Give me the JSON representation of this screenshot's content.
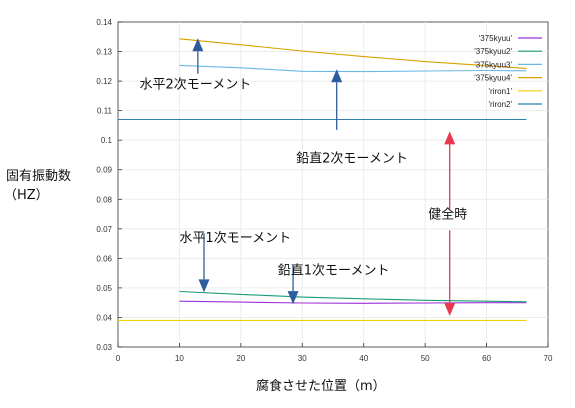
{
  "chart_data": {
    "type": "line",
    "ylabel": "固有振動数",
    "ylabel_unit": "（HZ）",
    "xlabel": "腐食させた位置（m）",
    "xlim": [
      0,
      70
    ],
    "ylim": [
      0.03,
      0.14
    ],
    "x_ticks": [
      0,
      10,
      20,
      30,
      40,
      50,
      60,
      70
    ],
    "y_ticks": [
      0.03,
      0.04,
      0.05,
      0.06,
      0.07,
      0.08,
      0.09,
      0.1,
      0.11,
      0.12,
      0.13,
      0.14
    ],
    "legend_position": "top-right",
    "grid": true,
    "series": [
      {
        "name": "'375kyuu'",
        "color": "#9b30d9",
        "x": [
          10,
          20,
          30,
          40,
          50,
          60,
          66.5
        ],
        "y": [
          0.0455,
          0.0452,
          0.0449,
          0.0448,
          0.0449,
          0.045,
          0.045
        ]
      },
      {
        "name": "'375kyuu2'",
        "color": "#1a9a7a",
        "x": [
          10,
          20,
          30,
          40,
          50,
          60,
          66.5
        ],
        "y": [
          0.0488,
          0.0478,
          0.0469,
          0.0463,
          0.0458,
          0.0455,
          0.0453
        ]
      },
      {
        "name": "'375kyuu3'",
        "color": "#6ab8e6",
        "x": [
          10,
          20,
          30,
          40,
          50,
          60,
          66.5
        ],
        "y": [
          0.1253,
          0.1245,
          0.1233,
          0.1232,
          0.1234,
          0.1236,
          0.1235
        ]
      },
      {
        "name": "'375kyuu4'",
        "color": "#d9a000",
        "x": [
          10,
          20,
          30,
          40,
          50,
          60,
          66.5
        ],
        "y": [
          0.1343,
          0.1323,
          0.1302,
          0.1283,
          0.1266,
          0.1252,
          0.1243
        ]
      },
      {
        "name": "'riron1'",
        "color": "#f2d200",
        "x": [
          0,
          66.5
        ],
        "y": [
          0.039,
          0.039
        ]
      },
      {
        "name": "'riron2'",
        "color": "#2f7fb0",
        "x": [
          0,
          66.5
        ],
        "y": [
          0.107,
          0.107
        ]
      }
    ],
    "annotations": [
      {
        "text": "水平2次モーメント",
        "x": 3.5,
        "y": 0.1175,
        "color": "#111111"
      },
      {
        "text": "鉛直2次モーメント",
        "x": 29,
        "y": 0.0925,
        "color": "#111111"
      },
      {
        "text": "水平1次モーメント",
        "x": 10,
        "y": 0.0655,
        "color": "#111111"
      },
      {
        "text": "鉛直1次モーメント",
        "x": 26,
        "y": 0.0545,
        "color": "#111111"
      },
      {
        "text": "健全時",
        "x": 50.5,
        "y": 0.0735,
        "color": "#d81b3c"
      }
    ],
    "arrows": [
      {
        "color": "#2d5d9c",
        "x1": 13,
        "y1": 0.1225,
        "x2": 13,
        "y2": 0.1345
      },
      {
        "color": "#2d5d9c",
        "x1": 35.6,
        "y1": 0.1035,
        "x2": 35.6,
        "y2": 0.124
      },
      {
        "color": "#2d5d9c",
        "x1": 14,
        "y1": 0.0685,
        "x2": 14,
        "y2": 0.0485
      },
      {
        "color": "#2d5d9c",
        "x1": 28.5,
        "y1": 0.0575,
        "x2": 28.5,
        "y2": 0.0445
      },
      {
        "color": "#e8384f",
        "x1": 54,
        "y1": 0.0765,
        "x2": 54,
        "y2": 0.103,
        "head": "end"
      },
      {
        "color": "#e8384f",
        "x1": 54,
        "y1": 0.0695,
        "x2": 54,
        "y2": 0.0405,
        "head": "end"
      }
    ]
  }
}
